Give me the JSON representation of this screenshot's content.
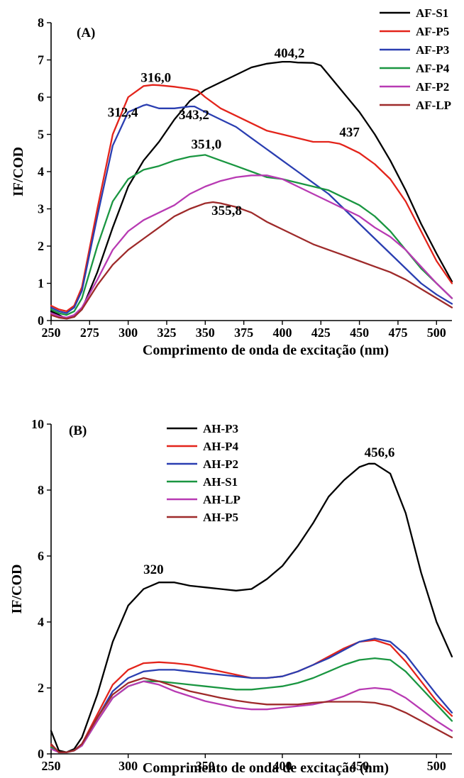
{
  "chart_data": [
    {
      "type": "line",
      "panel_label": "(A)",
      "xlabel": "Comprimento de onda de excitação (nm)",
      "ylabel": "IF/COD",
      "xlim": [
        250,
        510
      ],
      "ylim": [
        0,
        8
      ],
      "xticks": [
        250,
        275,
        300,
        325,
        350,
        375,
        400,
        425,
        450,
        475,
        500
      ],
      "yticks": [
        0,
        1,
        2,
        3,
        4,
        5,
        6,
        7,
        8
      ],
      "legend_position": "top-right",
      "series": [
        {
          "name": "AF-S1",
          "color": "#000000",
          "x": [
            250,
            255,
            260,
            265,
            270,
            280,
            290,
            300,
            310,
            320,
            330,
            340,
            350,
            360,
            370,
            380,
            390,
            400,
            405,
            410,
            420,
            425,
            430,
            440,
            450,
            460,
            470,
            480,
            490,
            500,
            510
          ],
          "y": [
            0.25,
            0.15,
            0.05,
            0.1,
            0.3,
            1.3,
            2.5,
            3.6,
            4.3,
            4.8,
            5.4,
            5.9,
            6.2,
            6.4,
            6.6,
            6.8,
            6.9,
            6.95,
            6.95,
            6.93,
            6.92,
            6.85,
            6.6,
            6.1,
            5.6,
            5.0,
            4.3,
            3.5,
            2.6,
            1.8,
            1.05
          ]
        },
        {
          "name": "AF-P5",
          "color": "#e3241b",
          "x": [
            250,
            255,
            260,
            265,
            270,
            280,
            290,
            300,
            310,
            316,
            320,
            330,
            340,
            345,
            350,
            360,
            370,
            380,
            390,
            400,
            410,
            420,
            430,
            437,
            440,
            450,
            460,
            470,
            480,
            490,
            500,
            510
          ],
          "y": [
            0.4,
            0.3,
            0.25,
            0.4,
            0.9,
            3.0,
            5.0,
            6.0,
            6.3,
            6.33,
            6.32,
            6.28,
            6.22,
            6.18,
            6.0,
            5.7,
            5.5,
            5.3,
            5.1,
            5.0,
            4.9,
            4.8,
            4.8,
            4.75,
            4.7,
            4.5,
            4.2,
            3.8,
            3.2,
            2.4,
            1.6,
            1.0
          ]
        },
        {
          "name": "AF-P3",
          "color": "#2a3eb1",
          "x": [
            250,
            255,
            260,
            265,
            270,
            280,
            290,
            300,
            310,
            312,
            320,
            330,
            340,
            343,
            350,
            360,
            370,
            380,
            390,
            400,
            410,
            420,
            430,
            440,
            450,
            460,
            470,
            480,
            490,
            500,
            510
          ],
          "y": [
            0.35,
            0.25,
            0.2,
            0.35,
            0.8,
            2.8,
            4.7,
            5.6,
            5.78,
            5.8,
            5.7,
            5.7,
            5.75,
            5.75,
            5.6,
            5.4,
            5.2,
            4.9,
            4.6,
            4.3,
            4.0,
            3.7,
            3.4,
            3.0,
            2.6,
            2.2,
            1.8,
            1.4,
            1.0,
            0.7,
            0.45
          ]
        },
        {
          "name": "AF-P4",
          "color": "#1a9641",
          "x": [
            250,
            255,
            260,
            265,
            270,
            280,
            290,
            300,
            310,
            320,
            330,
            340,
            350,
            360,
            370,
            380,
            390,
            400,
            410,
            420,
            430,
            440,
            450,
            460,
            470,
            480,
            490,
            500,
            510
          ],
          "y": [
            0.3,
            0.2,
            0.15,
            0.25,
            0.6,
            2.0,
            3.2,
            3.8,
            4.05,
            4.15,
            4.3,
            4.4,
            4.45,
            4.3,
            4.15,
            4.0,
            3.85,
            3.8,
            3.7,
            3.6,
            3.5,
            3.3,
            3.1,
            2.8,
            2.4,
            1.9,
            1.4,
            1.0,
            0.6
          ]
        },
        {
          "name": "AF-P2",
          "color": "#b83ab3",
          "x": [
            250,
            255,
            260,
            265,
            270,
            280,
            290,
            300,
            310,
            320,
            330,
            340,
            350,
            360,
            370,
            380,
            390,
            400,
            410,
            420,
            430,
            440,
            450,
            460,
            470,
            480,
            490,
            500,
            510
          ],
          "y": [
            0.2,
            0.12,
            0.08,
            0.15,
            0.35,
            1.1,
            1.9,
            2.4,
            2.7,
            2.9,
            3.1,
            3.4,
            3.6,
            3.75,
            3.85,
            3.9,
            3.9,
            3.8,
            3.6,
            3.4,
            3.2,
            3.0,
            2.8,
            2.5,
            2.25,
            1.9,
            1.45,
            1.0,
            0.6
          ]
        },
        {
          "name": "AF-LP",
          "color": "#9e2a2a",
          "x": [
            250,
            255,
            260,
            265,
            270,
            280,
            290,
            300,
            310,
            320,
            330,
            340,
            350,
            355,
            360,
            370,
            380,
            390,
            400,
            410,
            420,
            430,
            440,
            450,
            460,
            470,
            480,
            490,
            500,
            510
          ],
          "y": [
            0.15,
            0.08,
            0.05,
            0.1,
            0.3,
            0.95,
            1.5,
            1.9,
            2.2,
            2.5,
            2.8,
            3.0,
            3.15,
            3.18,
            3.15,
            3.05,
            2.9,
            2.65,
            2.45,
            2.25,
            2.05,
            1.9,
            1.75,
            1.6,
            1.45,
            1.3,
            1.1,
            0.85,
            0.6,
            0.35
          ]
        }
      ],
      "annotations": [
        {
          "text": "316,0",
          "x": 316,
          "y": 6.33
        },
        {
          "text": "404,2",
          "x": 404,
          "y": 6.95
        },
        {
          "text": "312,4",
          "x": 312,
          "y": 5.8
        },
        {
          "text": "343,2",
          "x": 343,
          "y": 5.75
        },
        {
          "text": "437",
          "x": 437,
          "y": 4.75
        },
        {
          "text": "351,0",
          "x": 351,
          "y": 4.45
        },
        {
          "text": "355,8",
          "x": 355,
          "y": 3.18
        }
      ]
    },
    {
      "type": "line",
      "panel_label": "(B)",
      "xlabel": "Comprimento de onda de excitação (nm)",
      "ylabel": "IF/COD",
      "xlim": [
        250,
        510
      ],
      "ylim": [
        0,
        10
      ],
      "xticks": [
        250,
        300,
        350,
        400,
        450,
        500
      ],
      "yticks": [
        0,
        2,
        4,
        6,
        8,
        10
      ],
      "legend_position": "top-left",
      "series": [
        {
          "name": "AH-P3",
          "color": "#000000",
          "x": [
            250,
            255,
            260,
            265,
            270,
            280,
            290,
            300,
            310,
            320,
            330,
            340,
            350,
            360,
            370,
            380,
            390,
            400,
            410,
            420,
            430,
            440,
            450,
            456,
            460,
            470,
            480,
            490,
            500,
            510
          ],
          "y": [
            0.7,
            0.1,
            0.05,
            0.15,
            0.5,
            1.8,
            3.4,
            4.5,
            5.0,
            5.2,
            5.2,
            5.1,
            5.05,
            5.0,
            4.95,
            5.0,
            5.3,
            5.7,
            6.3,
            7.0,
            7.8,
            8.3,
            8.7,
            8.8,
            8.8,
            8.5,
            7.3,
            5.5,
            4.0,
            2.95
          ]
        },
        {
          "name": "AH-P4",
          "color": "#e3241b",
          "x": [
            250,
            255,
            260,
            265,
            270,
            280,
            290,
            300,
            310,
            320,
            330,
            340,
            350,
            360,
            370,
            380,
            390,
            400,
            410,
            420,
            430,
            440,
            450,
            460,
            470,
            480,
            490,
            500,
            510
          ],
          "y": [
            0.25,
            0.05,
            0.05,
            0.1,
            0.3,
            1.2,
            2.1,
            2.55,
            2.75,
            2.78,
            2.75,
            2.7,
            2.6,
            2.5,
            2.4,
            2.3,
            2.3,
            2.35,
            2.5,
            2.7,
            2.95,
            3.2,
            3.4,
            3.45,
            3.3,
            2.8,
            2.2,
            1.6,
            1.15
          ]
        },
        {
          "name": "AH-P2",
          "color": "#2a3eb1",
          "x": [
            250,
            255,
            260,
            265,
            270,
            280,
            290,
            300,
            310,
            320,
            330,
            340,
            350,
            360,
            370,
            380,
            390,
            400,
            410,
            420,
            430,
            440,
            450,
            460,
            470,
            480,
            490,
            500,
            510
          ],
          "y": [
            0.2,
            0.05,
            0.05,
            0.1,
            0.3,
            1.1,
            1.9,
            2.3,
            2.5,
            2.55,
            2.55,
            2.5,
            2.45,
            2.4,
            2.35,
            2.3,
            2.3,
            2.35,
            2.5,
            2.7,
            2.9,
            3.15,
            3.4,
            3.5,
            3.4,
            3.0,
            2.4,
            1.8,
            1.25
          ]
        },
        {
          "name": "AH-S1",
          "color": "#1a9641",
          "x": [
            250,
            255,
            260,
            265,
            270,
            280,
            290,
            300,
            310,
            320,
            330,
            340,
            350,
            360,
            370,
            380,
            390,
            400,
            410,
            420,
            430,
            440,
            450,
            460,
            470,
            480,
            490,
            500,
            510
          ],
          "y": [
            0.2,
            0.05,
            0.05,
            0.1,
            0.25,
            1.0,
            1.7,
            2.05,
            2.2,
            2.2,
            2.15,
            2.1,
            2.05,
            2.0,
            1.95,
            1.95,
            2.0,
            2.05,
            2.15,
            2.3,
            2.5,
            2.7,
            2.85,
            2.9,
            2.85,
            2.5,
            2.0,
            1.5,
            1.0
          ]
        },
        {
          "name": "AH-LP",
          "color": "#b83ab3",
          "x": [
            250,
            255,
            260,
            265,
            270,
            280,
            290,
            300,
            310,
            320,
            330,
            340,
            350,
            360,
            370,
            380,
            390,
            400,
            410,
            420,
            430,
            440,
            450,
            460,
            470,
            480,
            490,
            500,
            510
          ],
          "y": [
            0.15,
            0.05,
            0.05,
            0.1,
            0.25,
            1.0,
            1.7,
            2.05,
            2.2,
            2.1,
            1.9,
            1.75,
            1.6,
            1.5,
            1.4,
            1.35,
            1.35,
            1.4,
            1.45,
            1.5,
            1.6,
            1.75,
            1.95,
            2.0,
            1.95,
            1.7,
            1.35,
            1.0,
            0.7
          ]
        },
        {
          "name": "AH-P5",
          "color": "#9e2a2a",
          "x": [
            250,
            255,
            260,
            265,
            270,
            280,
            290,
            300,
            310,
            320,
            330,
            340,
            350,
            360,
            370,
            380,
            390,
            400,
            410,
            420,
            430,
            440,
            450,
            460,
            470,
            480,
            490,
            500,
            510
          ],
          "y": [
            0.3,
            0.05,
            0.05,
            0.1,
            0.3,
            1.1,
            1.8,
            2.15,
            2.3,
            2.2,
            2.05,
            1.9,
            1.8,
            1.7,
            1.62,
            1.55,
            1.5,
            1.5,
            1.5,
            1.55,
            1.58,
            1.58,
            1.58,
            1.55,
            1.45,
            1.25,
            1.0,
            0.75,
            0.5
          ]
        }
      ],
      "annotations": [
        {
          "text": "320",
          "x": 320,
          "y": 5.2
        },
        {
          "text": "456,6",
          "x": 456,
          "y": 8.8
        }
      ]
    }
  ]
}
